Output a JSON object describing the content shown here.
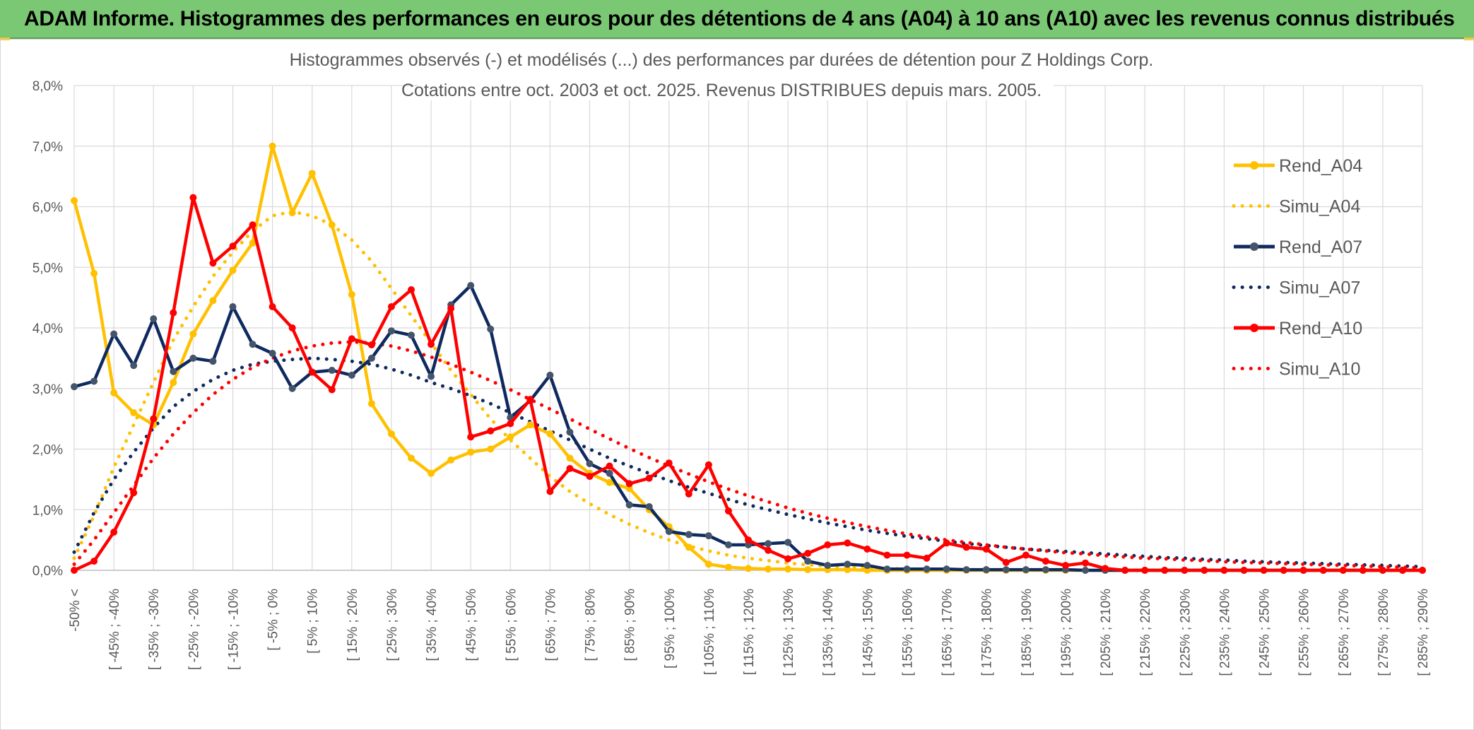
{
  "banner": {
    "title": "ADAM Informe. Histogrammes des performances en euros pour des détentions de 4 ans (A04) à 10 ans (A10) avec les revenus connus distribués"
  },
  "colors": {
    "banner_bg": "#7ac774",
    "A04": "#ffc000",
    "A07": "#0f2a5f",
    "A07_marker": "#44546a",
    "A10": "#ff0000",
    "grid": "#d9d9d9",
    "text": "#595959"
  },
  "chart_data": {
    "type": "line",
    "title_lines": [
      "Histogrammes observés (-) et modélisés (...) des performances par durées de détention pour Z Holdings Corp.",
      "Cotations entre oct. 2003 et oct. 2025. Revenus DISTRIBUES depuis mars. 2005."
    ],
    "ylim": [
      0,
      8
    ],
    "y_ticks": [
      "0,0%",
      "1,0%",
      "2,0%",
      "3,0%",
      "4,0%",
      "5,0%",
      "6,0%",
      "7,0%",
      "8,0%"
    ],
    "x_labels": [
      "-50% <",
      "[ -45% ; -40%",
      "[ -35% ; -30%",
      "[ -25% ; -20%",
      "[ -15% ; -10%",
      "[ -5% ; 0%",
      "[ 5% ; 10%",
      "[ 15% ; 20%",
      "[ 25% ; 30%",
      "[ 35% ; 40%",
      "[ 45% ; 50%",
      "[ 55% ; 60%",
      "[ 65% ; 70%",
      "[ 75% ; 80%",
      "[ 85% ; 90%",
      "[ 95% ; 100%",
      "[ 105% ; 110%",
      "[ 115% ; 120%",
      "[ 125% ; 130%",
      "[ 135% ; 140%",
      "[ 145% ; 150%",
      "[ 155% ; 160%",
      "[ 165% ; 170%",
      "[ 175% ; 180%",
      "[ 185% ; 190%",
      "[ 195% ; 200%",
      "[ 205% ; 210%",
      "[ 215% ; 220%",
      "[ 225% ; 230%",
      "[ 235% ; 240%",
      "[ 245% ; 250%",
      "[ 255% ; 260%",
      "[ 265% ; 270%",
      "[ 275% ; 280%",
      "[ 285% ; 290%"
    ],
    "n_points": 69,
    "legend_position": "right",
    "series": [
      {
        "name": "Rend_A04",
        "style": "solid",
        "color": "#ffc000",
        "values": [
          6.1,
          4.9,
          2.93,
          2.6,
          2.4,
          3.1,
          3.9,
          4.45,
          4.95,
          5.4,
          7.0,
          5.9,
          6.55,
          5.7,
          4.55,
          2.75,
          2.25,
          1.85,
          1.6,
          1.82,
          1.95,
          2.0,
          2.2,
          2.4,
          2.25,
          1.85,
          1.6,
          1.45,
          1.35,
          1.0,
          0.72,
          0.38,
          0.1,
          0.05,
          0.03,
          0.02,
          0.02,
          0.01,
          0.01,
          0.01,
          0,
          0,
          0,
          0,
          0,
          0,
          0,
          0,
          0,
          0,
          0,
          0,
          0,
          0,
          0,
          0,
          0,
          0,
          0,
          0,
          0,
          0,
          0,
          0,
          0,
          0,
          0,
          0,
          0
        ]
      },
      {
        "name": "Simu_A04",
        "style": "dotted",
        "color": "#ffc000",
        "values": [
          0.2,
          0.9,
          1.7,
          2.4,
          3.1,
          3.8,
          4.35,
          4.85,
          5.25,
          5.6,
          5.85,
          5.92,
          5.85,
          5.7,
          5.45,
          5.1,
          4.65,
          4.2,
          3.75,
          3.3,
          2.9,
          2.5,
          2.15,
          1.85,
          1.55,
          1.3,
          1.1,
          0.92,
          0.76,
          0.62,
          0.5,
          0.4,
          0.32,
          0.25,
          0.2,
          0.16,
          0.12,
          0.09,
          0.07,
          0.05,
          0.04,
          0.03,
          0.02,
          0.02,
          0.01,
          0.01,
          0.01,
          0,
          0,
          0,
          0,
          0,
          0,
          0,
          0,
          0,
          0,
          0,
          0,
          0,
          0,
          0,
          0,
          0,
          0,
          0,
          0,
          0,
          0
        ]
      },
      {
        "name": "Rend_A07",
        "style": "solid",
        "color": "#0f2a5f",
        "values": [
          3.03,
          3.12,
          3.9,
          3.38,
          4.15,
          3.28,
          3.5,
          3.45,
          4.35,
          3.73,
          3.58,
          3.0,
          3.27,
          3.3,
          3.22,
          3.5,
          3.95,
          3.88,
          3.2,
          4.38,
          4.7,
          3.98,
          2.52,
          2.8,
          3.22,
          2.28,
          1.76,
          1.6,
          1.08,
          1.05,
          0.64,
          0.59,
          0.57,
          0.42,
          0.42,
          0.44,
          0.46,
          0.15,
          0.08,
          0.1,
          0.08,
          0.02,
          0.02,
          0.02,
          0.02,
          0.01,
          0.01,
          0.01,
          0.01,
          0.01,
          0.01,
          0,
          0,
          0,
          0,
          0,
          0,
          0,
          0,
          0,
          0,
          0,
          0,
          0,
          0,
          0,
          0,
          0,
          0
        ]
      },
      {
        "name": "Simu_A07",
        "style": "dotted",
        "color": "#0f2a5f",
        "values": [
          0.3,
          0.95,
          1.5,
          1.95,
          2.35,
          2.7,
          2.95,
          3.15,
          3.3,
          3.4,
          3.45,
          3.48,
          3.5,
          3.48,
          3.45,
          3.4,
          3.32,
          3.22,
          3.1,
          3.0,
          2.88,
          2.75,
          2.6,
          2.45,
          2.3,
          2.15,
          2.0,
          1.85,
          1.72,
          1.6,
          1.48,
          1.37,
          1.27,
          1.17,
          1.08,
          1.0,
          0.92,
          0.85,
          0.78,
          0.72,
          0.66,
          0.61,
          0.56,
          0.52,
          0.48,
          0.44,
          0.41,
          0.38,
          0.35,
          0.33,
          0.31,
          0.29,
          0.27,
          0.25,
          0.23,
          0.21,
          0.2,
          0.18,
          0.17,
          0.15,
          0.14,
          0.13,
          0.12,
          0.11,
          0.1,
          0.09,
          0.08,
          0.07,
          0.06
        ]
      },
      {
        "name": "Rend_A10",
        "style": "solid",
        "color": "#ff0000",
        "values": [
          0.0,
          0.15,
          0.63,
          1.28,
          2.5,
          4.25,
          6.15,
          5.07,
          5.35,
          5.7,
          4.35,
          4.0,
          3.27,
          2.98,
          3.82,
          3.72,
          4.35,
          4.63,
          3.73,
          4.32,
          2.2,
          2.3,
          2.42,
          2.82,
          1.3,
          1.68,
          1.55,
          1.72,
          1.43,
          1.52,
          1.77,
          1.26,
          1.74,
          0.98,
          0.5,
          0.33,
          0.19,
          0.28,
          0.42,
          0.45,
          0.35,
          0.25,
          0.25,
          0.2,
          0.45,
          0.38,
          0.35,
          0.13,
          0.25,
          0.15,
          0.08,
          0.12,
          0.03,
          0,
          0,
          0,
          0,
          0,
          0,
          0,
          0,
          0,
          0,
          0,
          0,
          0,
          0,
          0,
          0
        ]
      },
      {
        "name": "Simu_A10",
        "style": "dotted",
        "color": "#ff0000",
        "values": [
          0.1,
          0.5,
          0.95,
          1.4,
          1.85,
          2.25,
          2.6,
          2.9,
          3.15,
          3.35,
          3.5,
          3.62,
          3.7,
          3.75,
          3.77,
          3.75,
          3.7,
          3.62,
          3.52,
          3.4,
          3.27,
          3.13,
          2.98,
          2.82,
          2.66,
          2.5,
          2.33,
          2.17,
          2.01,
          1.86,
          1.72,
          1.59,
          1.46,
          1.34,
          1.23,
          1.13,
          1.03,
          0.94,
          0.86,
          0.79,
          0.72,
          0.66,
          0.6,
          0.55,
          0.5,
          0.46,
          0.42,
          0.38,
          0.35,
          0.32,
          0.29,
          0.27,
          0.24,
          0.22,
          0.2,
          0.19,
          0.17,
          0.16,
          0.14,
          0.13,
          0.12,
          0.11,
          0.1,
          0.09,
          0.08,
          0.07,
          0.06,
          0.05,
          0.04
        ]
      }
    ]
  }
}
